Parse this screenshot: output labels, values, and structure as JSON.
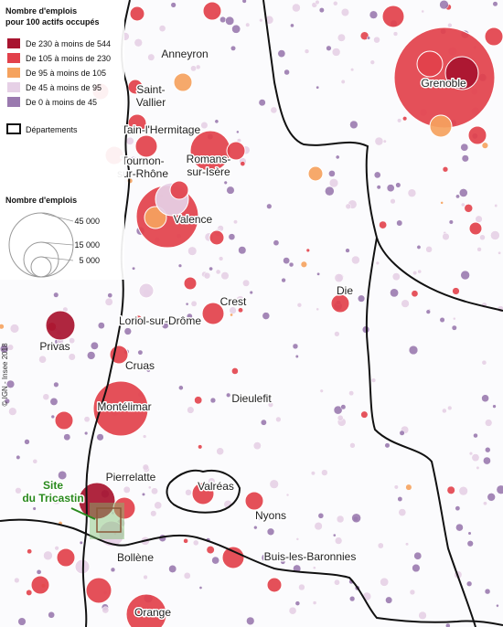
{
  "legend": {
    "title": [
      "Nombre d'emplois",
      "pour 100 actifs occupés"
    ],
    "classes": [
      {
        "label": "De 230 à moins de 544",
        "color": "#a8142f"
      },
      {
        "label": "De 105 à moins de 230",
        "color": "#e2414b"
      },
      {
        "label": "De 95 à moins de 105",
        "color": "#f5a25e"
      },
      {
        "label": "De 45 à moins de 95",
        "color": "#e6d0e6"
      },
      {
        "label": "De 0 à moins de 45",
        "color": "#9a7aaf"
      }
    ],
    "boundary": "Départements",
    "size_title": "Nombre d'emplois",
    "size_labels": [
      "45 000",
      "15 000",
      "5 000"
    ]
  },
  "places": [
    {
      "lines": [
        "Anneyron"
      ]
    },
    {
      "lines": [
        "Saint-",
        "Vallier"
      ]
    },
    {
      "lines": [
        "Tain-l'Hermitage"
      ]
    },
    {
      "lines": [
        "Tournon-",
        "sur-Rhône"
      ]
    },
    {
      "lines": [
        "Romans-",
        "sur-Isère"
      ]
    },
    {
      "lines": [
        "Valence"
      ]
    },
    {
      "lines": [
        "Grenoble"
      ]
    },
    {
      "lines": [
        "Crest"
      ]
    },
    {
      "lines": [
        "Die"
      ]
    },
    {
      "lines": [
        "Loriol-sur-Drôme"
      ]
    },
    {
      "lines": [
        "Privas"
      ]
    },
    {
      "lines": [
        "Cruas"
      ]
    },
    {
      "lines": [
        "Montélimar"
      ]
    },
    {
      "lines": [
        "Dieulefit"
      ]
    },
    {
      "lines": [
        "Pierrelatte"
      ]
    },
    {
      "lines": [
        "Valréas"
      ]
    },
    {
      "lines": [
        "Nyons"
      ]
    },
    {
      "lines": [
        "Bollène"
      ]
    },
    {
      "lines": [
        "Buis-les-Baronnies"
      ]
    },
    {
      "lines": [
        "Orange"
      ]
    }
  ],
  "site": [
    "Site",
    "du Tricastin"
  ],
  "credit": "© IGN - Insee 2018"
}
